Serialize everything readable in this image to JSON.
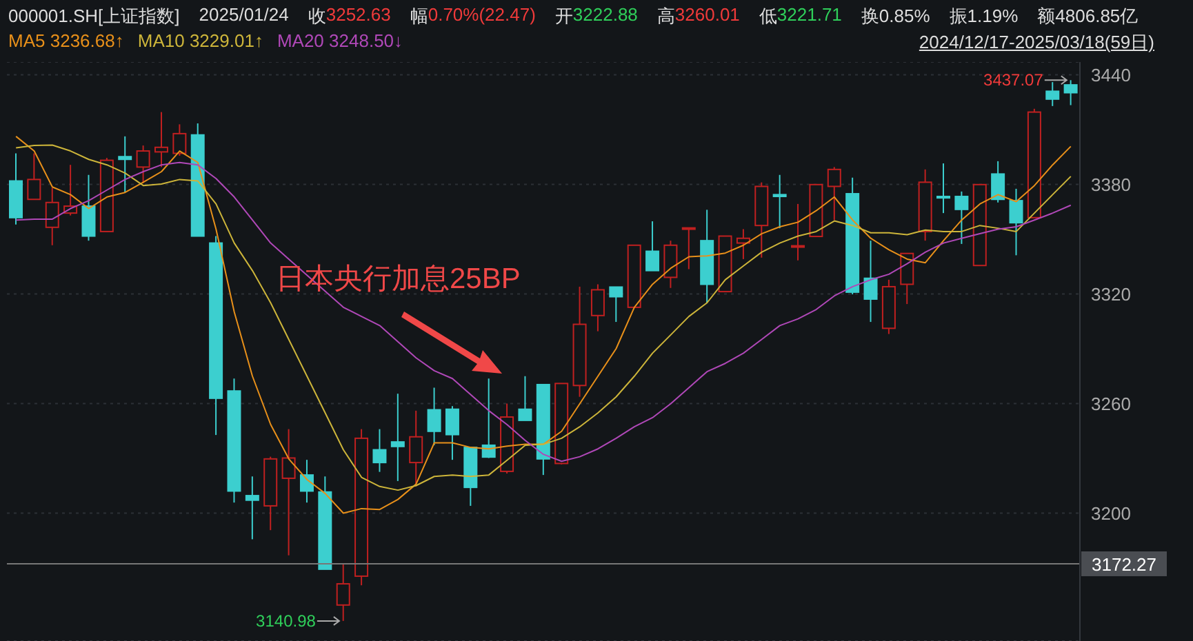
{
  "chart_data": {
    "type": "candlestick",
    "title": "000001.SH[上证指数]",
    "subtitle": "2024/12/17-2025/03/18(59日)",
    "categories": [
      null,
      null,
      null,
      null,
      null,
      null,
      null,
      null,
      null,
      null,
      null,
      null,
      null,
      null,
      null,
      null,
      null,
      null,
      null,
      null,
      null,
      null,
      null,
      null,
      null,
      null,
      null,
      null,
      null,
      null,
      null,
      null,
      null,
      null,
      null,
      null,
      null,
      null,
      null,
      null,
      null,
      null,
      null,
      null,
      null,
      null,
      null,
      null,
      null,
      null,
      null,
      null,
      null,
      null,
      null,
      null,
      null,
      null,
      null
    ],
    "ohlc": [
      [
        3381.9,
        3397.0,
        3358.0,
        3361.8
      ],
      [
        3371.8,
        3397.0,
        3371.8,
        3382.7
      ],
      [
        3356.5,
        3378.1,
        3346.7,
        3370.1
      ],
      [
        3364.3,
        3390.7,
        3363.0,
        3368.1
      ],
      [
        3368.1,
        3385.2,
        3349.2,
        3351.7
      ],
      [
        3354.2,
        3394.5,
        3354.2,
        3393.2
      ],
      [
        3395.2,
        3406.3,
        3375.6,
        3393.7
      ],
      [
        3389.5,
        3401.3,
        3380.7,
        3398.3
      ],
      [
        3397.8,
        3419.6,
        3389.5,
        3400.3
      ],
      [
        3397.0,
        3412.9,
        3395.7,
        3407.8
      ],
      [
        3407.1,
        3413.4,
        3351.7,
        3351.7
      ],
      [
        3347.9,
        3351.7,
        3242.8,
        3262.9
      ],
      [
        3266.9,
        3273.7,
        3205.8,
        3212.1
      ],
      [
        3209.6,
        3220.1,
        3185.7,
        3207.1
      ],
      [
        3204.0,
        3230.9,
        3190.7,
        3229.7
      ],
      [
        3219.1,
        3246.0,
        3176.9,
        3230.2
      ],
      [
        3220.9,
        3229.2,
        3205.8,
        3212.1
      ],
      [
        3211.6,
        3220.1,
        3169.3,
        3169.3
      ],
      [
        3149.7,
        3172.3,
        3140.98,
        3161.3
      ],
      [
        3165.5,
        3246.0,
        3160.5,
        3241.0
      ],
      [
        3234.7,
        3246.0,
        3222.6,
        3227.7
      ],
      [
        3239.0,
        3265.4,
        3217.6,
        3236.5
      ],
      [
        3227.7,
        3256.1,
        3214.6,
        3241.8
      ],
      [
        3256.6,
        3268.7,
        3237.2,
        3244.8
      ],
      [
        3256.9,
        3258.6,
        3229.2,
        3243.0
      ],
      [
        3236.0,
        3236.0,
        3204.0,
        3214.1
      ],
      [
        3237.2,
        3273.7,
        3230.2,
        3230.7
      ],
      [
        3222.88,
        3260.01,
        3221.71,
        3252.63
      ],
      [
        3256.9,
        3275.0,
        3250.8,
        3250.8
      ],
      [
        3270.4,
        3270.4,
        3220.9,
        3229.7
      ],
      [
        3227.2,
        3271.0,
        3226.7,
        3271.0
      ],
      [
        3269.9,
        3324.0,
        3263.7,
        3303.4
      ],
      [
        3308.2,
        3325.3,
        3299.6,
        3322.3
      ],
      [
        3323.8,
        3323.8,
        3304.7,
        3318.5
      ],
      [
        3312.7,
        3346.7,
        3312.7,
        3346.7
      ],
      [
        3343.4,
        3359.8,
        3332.8,
        3332.8
      ],
      [
        3329.1,
        3349.2,
        3323.3,
        3346.7
      ],
      [
        3355.5,
        3356.2,
        3333.6,
        3356.2
      ],
      [
        3349.2,
        3366.1,
        3315.2,
        3325.3
      ],
      [
        3321.3,
        3351.7,
        3321.3,
        3351.7
      ],
      [
        3347.9,
        3355.5,
        3339.1,
        3350.5
      ],
      [
        3357.5,
        3381.1,
        3339.9,
        3378.9
      ],
      [
        3374.4,
        3385.2,
        3356.0,
        3373.4
      ],
      [
        3345.9,
        3369.3,
        3338.4,
        3346.4
      ],
      [
        3351.5,
        3379.9,
        3351.5,
        3379.9
      ],
      [
        3378.9,
        3389.5,
        3360.5,
        3388.2
      ],
      [
        3374.9,
        3383.7,
        3319.8,
        3321.0
      ],
      [
        3328.6,
        3349.2,
        3304.7,
        3317.2
      ],
      [
        3301.2,
        3327.8,
        3298.1,
        3324.0
      ],
      [
        3325.3,
        3342.2,
        3314.5,
        3342.2
      ],
      [
        3354.2,
        3388.2,
        3349.2,
        3381.2
      ],
      [
        3373.4,
        3391.5,
        3364.3,
        3372.6
      ],
      [
        3373.4,
        3376.1,
        3347.4,
        3366.3
      ],
      [
        3335.6,
        3379.9,
        3335.6,
        3379.9
      ],
      [
        3385.7,
        3392.7,
        3370.1,
        3371.8
      ],
      [
        3371.1,
        3377.6,
        3341.2,
        3359.0
      ],
      [
        3361.8,
        3421.4,
        3361.8,
        3419.6
      ],
      [
        3431.0,
        3436.0,
        3422.9,
        3426.7
      ],
      [
        3434.5,
        3437.07,
        3423.4,
        3430.2
      ]
    ],
    "colors": [
      "#3ccfcf",
      "#c02020",
      "#c02020",
      "#c02020",
      "#3ccfcf",
      "#c02020",
      "#3ccfcf",
      "#c02020",
      "#c02020",
      "#c02020",
      "#3ccfcf",
      "#3ccfcf",
      "#3ccfcf",
      "#3ccfcf",
      "#c02020",
      "#c02020",
      "#3ccfcf",
      "#3ccfcf",
      "#c02020",
      "#c02020",
      "#3ccfcf",
      "#3ccfcf",
      "#c02020",
      "#3ccfcf",
      "#3ccfcf",
      "#3ccfcf",
      "#3ccfcf",
      "#c02020",
      "#3ccfcf",
      "#3ccfcf",
      "#c02020",
      "#c02020",
      "#c02020",
      "#3ccfcf",
      "#c02020",
      "#3ccfcf",
      "#c02020",
      "#c02020",
      "#3ccfcf",
      "#c02020",
      "#c02020",
      "#c02020",
      "#3ccfcf",
      "#c02020",
      "#c02020",
      "#c02020",
      "#3ccfcf",
      "#3ccfcf",
      "#c02020",
      "#c02020",
      "#c02020",
      "#3ccfcf",
      "#3ccfcf",
      "#c02020",
      "#3ccfcf",
      "#3ccfcf",
      "#c02020",
      "#3ccfcf",
      "#3ccfcf"
    ],
    "series": [
      {
        "type": "line",
        "name": "MA5",
        "color": "#e8901a",
        "values": [
          3406.3,
          3398.3,
          3378.6,
          3374.4,
          3366.8,
          3373.1,
          3375.6,
          3381.2,
          3387.0,
          3398.3,
          3392.0,
          3355.5,
          3310.2,
          3275.0,
          3248.6,
          3229.7,
          3218.4,
          3210.8,
          3200.0,
          3202.5,
          3202.0,
          3207.5,
          3215.9,
          3238.5,
          3238.5,
          3236.0,
          3235.2,
          3236.7,
          3237.7,
          3237.7,
          3244.8,
          3259.9,
          3275.0,
          3290.1,
          3312.7,
          3325.3,
          3334.1,
          3340.4,
          3340.9,
          3342.4,
          3346.7,
          3353.0,
          3356.8,
          3359.3,
          3365.6,
          3373.1,
          3360.5,
          3350.5,
          3344.2,
          3339.1,
          3337.1,
          3349.2,
          3360.5,
          3369.3,
          3374.4,
          3370.6,
          3379.4,
          3390.7,
          3400.8
        ]
      },
      {
        "type": "line",
        "name": "MA10",
        "color": "#cdb53a",
        "values": [
          3400.0,
          3401.3,
          3401.5,
          3398.3,
          3393.7,
          3390.7,
          3386.2,
          3379.4,
          3380.2,
          3382.7,
          3381.9,
          3369.3,
          3347.9,
          3332.8,
          3315.2,
          3295.1,
          3275.0,
          3254.9,
          3234.7,
          3219.6,
          3214.6,
          3212.6,
          3215.1,
          3220.1,
          3220.9,
          3220.1,
          3220.9,
          3229.0,
          3237.2,
          3237.7,
          3241.0,
          3247.3,
          3254.9,
          3263.7,
          3275.0,
          3287.6,
          3297.6,
          3307.7,
          3315.2,
          3327.8,
          3335.4,
          3342.9,
          3347.9,
          3351.7,
          3354.2,
          3360.0,
          3357.5,
          3353.5,
          3353.5,
          3352.5,
          3355.0,
          3354.2,
          3354.2,
          3357.5,
          3356.0,
          3354.2,
          3364.3,
          3374.4,
          3384.4
        ]
      },
      {
        "type": "line",
        "name": "MA20",
        "color": "#b048b8",
        "values": [
          3360.5,
          3361.0,
          3361.0,
          3366.8,
          3371.1,
          3376.9,
          3382.7,
          3387.0,
          3390.7,
          3392.0,
          3390.7,
          3383.2,
          3373.1,
          3360.5,
          3347.9,
          3339.1,
          3330.3,
          3321.5,
          3312.7,
          3307.7,
          3302.7,
          3293.9,
          3285.0,
          3278.0,
          3273.7,
          3264.9,
          3256.1,
          3248.5,
          3239.8,
          3232.2,
          3228.4,
          3230.9,
          3235.2,
          3241.0,
          3247.3,
          3252.3,
          3259.9,
          3268.7,
          3277.5,
          3282.0,
          3287.6,
          3295.1,
          3302.7,
          3306.4,
          3311.5,
          3319.0,
          3324.0,
          3327.8,
          3330.8,
          3336.6,
          3342.9,
          3347.9,
          3350.5,
          3353.0,
          3355.5,
          3356.8,
          3360.5,
          3364.3,
          3368.6
        ]
      }
    ],
    "ylim": [
      3130,
      3447
    ],
    "yticks": [
      3200,
      3260,
      3320,
      3380,
      3440
    ],
    "grid": "y",
    "legend": "top left",
    "tick_labels": "y",
    "ref_lines": [
      {
        "axis": "y",
        "value": 3172.27,
        "label": "3172.27",
        "color": "#777777"
      }
    ],
    "annotations": [
      "2025/01/24",
      "收",
      "3252.63",
      "幅",
      "0.70%(22.47)",
      "开",
      "3222.88",
      "高",
      "3260.01",
      "低",
      "3221.71",
      "换0.85%",
      "振1.19%",
      "额4806.85亿",
      "3236.68↑",
      "3229.01↑",
      "3248.50↓",
      "日本央行加息25BP",
      "3437.07",
      "3140.98"
    ]
  }
}
